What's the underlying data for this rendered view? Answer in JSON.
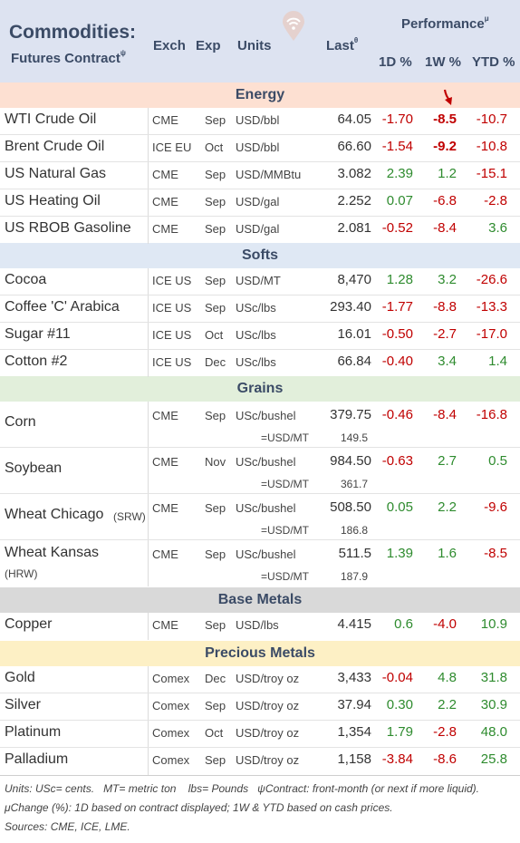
{
  "header": {
    "title": "Commodities:",
    "subtitle": "Futures Contract",
    "subtitle_sup": "ψ",
    "col_exch": "Exch",
    "col_exp": "Exp",
    "col_units": "Units",
    "col_last": "Last",
    "col_last_sup": "θ",
    "performance": "Performance",
    "performance_sup": "μ",
    "col_1d": "1D %",
    "col_1w": "1W %",
    "col_ytd": "YTD %",
    "logo_icon": "wifi-logo-icon"
  },
  "colors": {
    "energy": "#fde0d2",
    "softs": "#dfe8f4",
    "grains": "#e2efdb",
    "base": "#d9d9d9",
    "precious": "#fdf0c5",
    "negative": "#c00000",
    "positive": "#2e8b2e"
  },
  "sections": {
    "energy": {
      "label": "Energy",
      "rows": [
        {
          "name": "WTI Crude Oil",
          "exch": "CME",
          "exp": "Sep",
          "units": "USD/bbl",
          "last": "64.05",
          "d1": "-1.70",
          "w1": "-8.5",
          "ytd": "-10.7"
        },
        {
          "name": "Brent Crude Oil",
          "exch": "ICE EU",
          "exp": "Oct",
          "units": "USD/bbl",
          "last": "66.60",
          "d1": "-1.54",
          "w1": "-9.2",
          "ytd": "-10.8"
        },
        {
          "name": "US Natural Gas",
          "exch": "CME",
          "exp": "Sep",
          "units": "USD/MMBtu",
          "last": "3.082",
          "d1": "2.39",
          "w1": "1.2",
          "ytd": "-15.1"
        },
        {
          "name": "US Heating Oil",
          "exch": "CME",
          "exp": "Sep",
          "units": "USD/gal",
          "last": "2.252",
          "d1": "0.07",
          "w1": "-6.8",
          "ytd": "-2.8"
        },
        {
          "name": "US RBOB Gasoline",
          "exch": "CME",
          "exp": "Sep",
          "units": "USD/gal",
          "last": "2.081",
          "d1": "-0.52",
          "w1": "-8.4",
          "ytd": "3.6"
        }
      ]
    },
    "softs": {
      "label": "Softs",
      "rows": [
        {
          "name": "Cocoa",
          "exch": "ICE US",
          "exp": "Sep",
          "units": "USD/MT",
          "last": "8,470",
          "d1": "1.28",
          "w1": "3.2",
          "ytd": "-26.6"
        },
        {
          "name": "Coffee 'C' Arabica",
          "exch": "ICE US",
          "exp": "Sep",
          "units": "USc/lbs",
          "last": "293.40",
          "d1": "-1.77",
          "w1": "-8.8",
          "ytd": "-13.3"
        },
        {
          "name": "Sugar #11",
          "exch": "ICE US",
          "exp": "Oct",
          "units": "USc/lbs",
          "last": "16.01",
          "d1": "-0.50",
          "w1": "-2.7",
          "ytd": "-17.0"
        },
        {
          "name": "Cotton #2",
          "exch": "ICE US",
          "exp": "Dec",
          "units": "USc/lbs",
          "last": "66.84",
          "d1": "-0.40",
          "w1": "3.4",
          "ytd": "1.4"
        }
      ]
    },
    "grains": {
      "label": "Grains",
      "rows": [
        {
          "name": "Corn",
          "name2": "",
          "exch": "CME",
          "exp": "Sep",
          "units": "USc/bushel",
          "last": "379.75",
          "d1": "-0.46",
          "w1": "-8.4",
          "ytd": "-16.8",
          "units2": "=USD/MT",
          "last2": "149.5"
        },
        {
          "name": "Soybean",
          "name2": "",
          "exch": "CME",
          "exp": "Nov",
          "units": "USc/bushel",
          "last": "984.50",
          "d1": "-0.63",
          "w1": "2.7",
          "ytd": "0.5",
          "units2": "=USD/MT",
          "last2": "361.7"
        },
        {
          "name": "Wheat Chicago",
          "name2": "(SRW)",
          "exch": "CME",
          "exp": "Sep",
          "units": "USc/bushel",
          "last": "508.50",
          "d1": "0.05",
          "w1": "2.2",
          "ytd": "-9.6",
          "units2": "=USD/MT",
          "last2": "186.8"
        },
        {
          "name": "Wheat Kansas",
          "name2": "(HRW)",
          "exch": "CME",
          "exp": "Sep",
          "units": "USc/bushel",
          "last": "511.5",
          "d1": "1.39",
          "w1": "1.6",
          "ytd": "-8.5",
          "units2": "=USD/MT",
          "last2": "187.9"
        }
      ]
    },
    "base": {
      "label": "Base Metals",
      "rows": [
        {
          "name": "Copper",
          "exch": "CME",
          "exp": "Sep",
          "units": "USD/lbs",
          "last": "4.415",
          "d1": "0.6",
          "w1": "-4.0",
          "ytd": "10.9"
        }
      ]
    },
    "precious": {
      "label": "Precious Metals",
      "rows": [
        {
          "name": "Gold",
          "exch": "Comex",
          "exp": "Dec",
          "units": "USD/troy oz",
          "last": "3,433",
          "d1": "-0.04",
          "w1": "4.8",
          "ytd": "31.8"
        },
        {
          "name": "Silver",
          "exch": "Comex",
          "exp": "Sep",
          "units": "USD/troy oz",
          "last": "37.94",
          "d1": "0.30",
          "w1": "2.2",
          "ytd": "30.9"
        },
        {
          "name": "Platinum",
          "exch": "Comex",
          "exp": "Oct",
          "units": "USD/troy oz",
          "last": "1,354",
          "d1": "1.79",
          "w1": "-2.8",
          "ytd": "48.0"
        },
        {
          "name": "Palladium",
          "exch": "Comex",
          "exp": "Sep",
          "units": "USD/troy oz",
          "last": "1,158",
          "d1": "-3.84",
          "w1": "-8.6",
          "ytd": "25.8"
        }
      ]
    }
  },
  "footnotes": {
    "line1a": "Units: USc= cents.",
    "line1b": "MT= metric ton",
    "line1c": "lbs= Pounds",
    "line1d": "ψContract: front-month (or next if more liquid).",
    "line2": "μChange (%): 1D based on contract displayed; 1W & YTD based on cash prices.",
    "line3": "Sources: CME, ICE, LME."
  }
}
